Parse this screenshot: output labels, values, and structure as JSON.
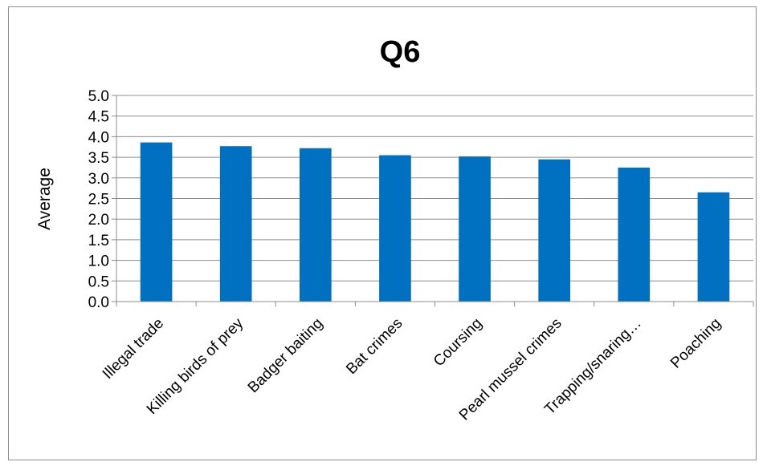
{
  "chart_data": {
    "type": "bar",
    "title": "Q6",
    "xlabel": "",
    "ylabel": "Average",
    "categories": [
      "Illegal trade",
      "Killing birds of prey",
      "Badger baiting",
      "Bat crimes",
      "Coursing",
      "Pearl mussel crimes",
      "Trapping/snaring…",
      "Poaching"
    ],
    "values": [
      3.86,
      3.77,
      3.72,
      3.55,
      3.52,
      3.45,
      3.25,
      2.65
    ],
    "ylim": [
      0,
      5
    ],
    "yticks": [
      "0.0",
      "0.5",
      "1.0",
      "1.5",
      "2.0",
      "2.5",
      "3.0",
      "3.5",
      "4.0",
      "4.5",
      "5.0"
    ],
    "grid": true,
    "legend": "none",
    "bar_color": "#0070C0"
  }
}
